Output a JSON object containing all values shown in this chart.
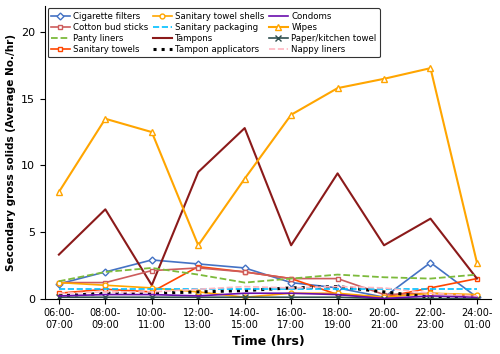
{
  "x_labels": [
    "06:00-\n07:00",
    "08:00-\n09:00",
    "10:00-\n11:00",
    "12:00-\n13:00",
    "14:00-\n15:00",
    "16:00-\n17:00",
    "18:00-\n19:00",
    "20:00-\n21:00",
    "22:00-\n23:00",
    "24:00-\n01:00"
  ],
  "series_data": {
    "Cigarette filters": [
      1.1,
      2.0,
      2.9,
      2.6,
      2.3,
      1.2,
      0.8,
      0.1,
      2.7,
      0.1
    ],
    "Sanitary towels": [
      0.4,
      0.7,
      0.5,
      2.4,
      2.0,
      1.5,
      0.3,
      0.1,
      0.8,
      1.5
    ],
    "Tampons": [
      3.3,
      6.7,
      1.0,
      9.5,
      12.8,
      4.0,
      9.4,
      4.0,
      6.0,
      1.5
    ],
    "Wipes": [
      8.0,
      13.5,
      12.5,
      4.0,
      9.0,
      13.8,
      15.8,
      16.5,
      17.3,
      2.7
    ],
    "Cotton bud sticks": [
      1.2,
      1.2,
      2.1,
      2.3,
      2.0,
      1.5,
      1.5,
      0.3,
      0.4,
      0.2
    ],
    "Sanitary towel shells": [
      1.2,
      1.0,
      0.8,
      0.5,
      0.1,
      0.4,
      0.4,
      0.1,
      0.4,
      0.3
    ],
    "Tampon applicators": [
      0.2,
      0.4,
      0.4,
      0.5,
      0.6,
      0.8,
      0.9,
      0.5,
      0.1,
      0.0
    ],
    "Paper/kitchen towel": [
      0.1,
      0.1,
      0.1,
      0.1,
      0.1,
      0.1,
      0.1,
      0.0,
      0.0,
      0.0
    ],
    "Panty liners": [
      1.3,
      2.0,
      2.3,
      1.8,
      1.2,
      1.5,
      1.8,
      1.6,
      1.5,
      1.8
    ],
    "Sanitary packaging": [
      0.7,
      0.7,
      0.7,
      0.7,
      0.7,
      0.7,
      0.7,
      0.7,
      0.7,
      0.7
    ],
    "Condoms": [
      0.2,
      0.3,
      0.3,
      0.2,
      0.4,
      0.4,
      0.3,
      0.0,
      0.2,
      0.1
    ],
    "Nappy liners": [
      0.4,
      0.5,
      0.5,
      0.7,
      0.9,
      0.8,
      0.9,
      0.8,
      0.4,
      0.2
    ]
  },
  "series_styles": {
    "Cigarette filters": {
      "color": "#4472C4",
      "linestyle": "-",
      "marker": "D",
      "ms": 3.5,
      "lw": 1.2,
      "mfc": "white"
    },
    "Sanitary towels": {
      "color": "#FF4500",
      "linestyle": "-",
      "marker": "s",
      "ms": 3.5,
      "lw": 1.2,
      "mfc": "white"
    },
    "Tampons": {
      "color": "#8B1A1A",
      "linestyle": "-",
      "marker": null,
      "ms": 4,
      "lw": 1.5,
      "mfc": null
    },
    "Wipes": {
      "color": "#FFA500",
      "linestyle": "-",
      "marker": "^",
      "ms": 4.5,
      "lw": 1.5,
      "mfc": "white"
    },
    "Cotton bud sticks": {
      "color": "#CD5C5C",
      "linestyle": "-",
      "marker": "s",
      "ms": 3.5,
      "lw": 1.2,
      "mfc": "white"
    },
    "Sanitary towel shells": {
      "color": "#FFA500",
      "linestyle": "-",
      "marker": "o",
      "ms": 3.5,
      "lw": 1.2,
      "mfc": "white"
    },
    "Tampon applicators": {
      "color": "#000000",
      "linestyle": ":",
      "marker": null,
      "ms": 4,
      "lw": 2.2,
      "mfc": null
    },
    "Paper/kitchen towel": {
      "color": "#2F4F4F",
      "linestyle": "-",
      "marker": "x",
      "ms": 4.5,
      "lw": 1.2,
      "mfc": null
    },
    "Panty liners": {
      "color": "#7CBA3B",
      "linestyle": "--",
      "marker": null,
      "ms": 4,
      "lw": 1.3,
      "mfc": null
    },
    "Sanitary packaging": {
      "color": "#00BFFF",
      "linestyle": "--",
      "marker": null,
      "ms": 4,
      "lw": 1.2,
      "mfc": null
    },
    "Condoms": {
      "color": "#6A0DAD",
      "linestyle": "-",
      "marker": null,
      "ms": 4,
      "lw": 1.2,
      "mfc": null
    },
    "Nappy liners": {
      "color": "#FFB6C1",
      "linestyle": "--",
      "marker": null,
      "ms": 4,
      "lw": 1.2,
      "mfc": null
    }
  },
  "legend_order": [
    "Cigarette filters",
    "Cotton bud sticks",
    "Panty liners",
    "Sanitary towels",
    "Sanitary towel shells",
    "Sanitary packaging",
    "Tampons",
    "Tampon applicators",
    "Condoms",
    "Wipes",
    "Paper/kitchen towel",
    "Nappy liners"
  ],
  "xlabel": "Time (hrs)",
  "ylabel": "Secondary gross solids (Average No./hr)",
  "ylim": [
    0,
    22
  ],
  "yticks": [
    0,
    5,
    10,
    15,
    20
  ],
  "figsize": [
    5.0,
    3.54
  ],
  "dpi": 100
}
